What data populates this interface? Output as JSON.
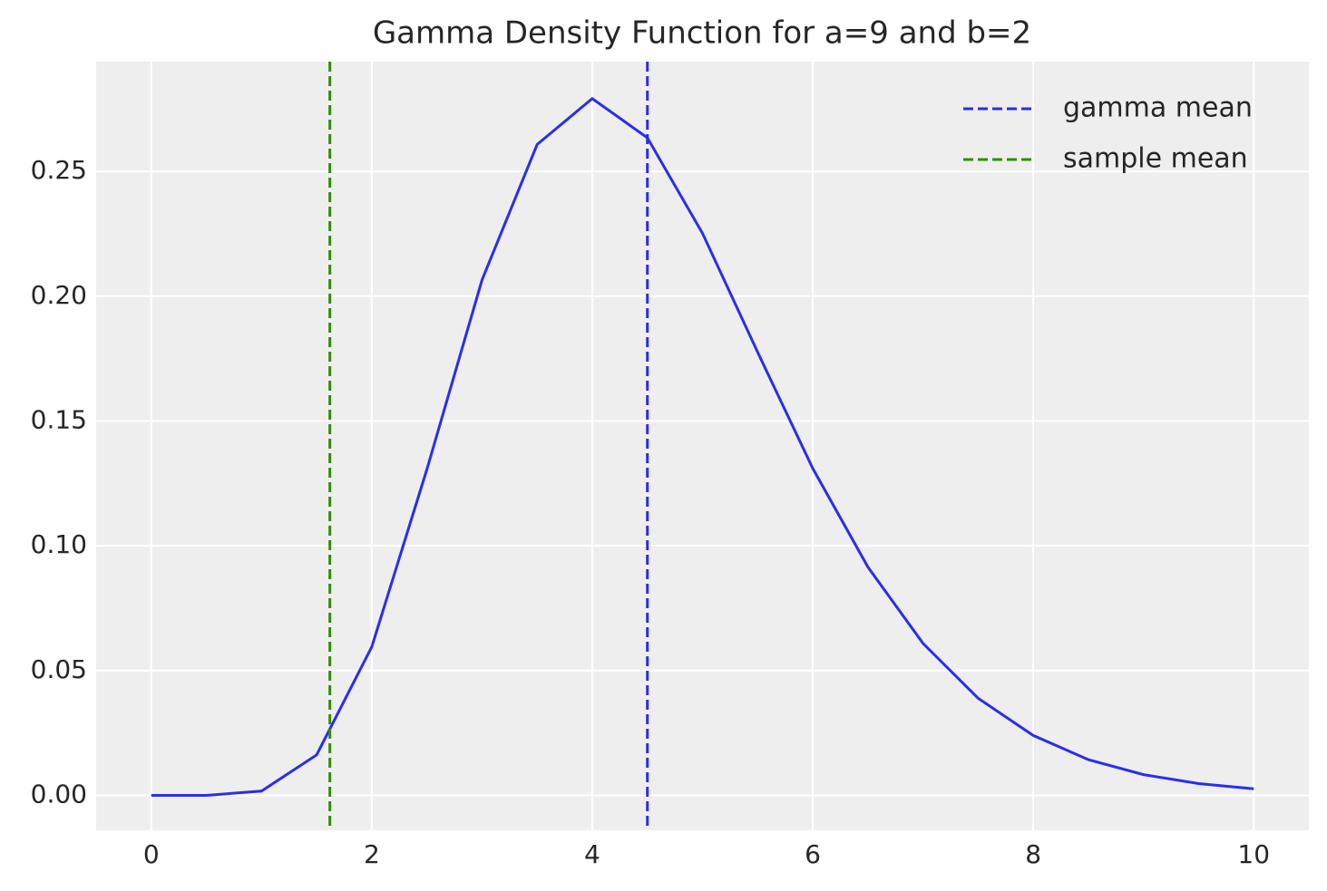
{
  "chart_data": {
    "type": "line",
    "title": "Gamma Density Function for a=9 and b=2",
    "x": [
      0,
      0.5,
      1,
      1.5,
      2,
      2.5,
      3,
      3.5,
      4,
      4.5,
      5,
      5.5,
      6,
      6.5,
      7,
      7.5,
      8,
      8.5,
      9,
      9.5,
      10
    ],
    "series": [
      {
        "color": "#2a2eec",
        "values": [
          0,
          0.0,
          0.0017,
          0.0162,
          0.0595,
          0.1306,
          0.2065,
          0.2608,
          0.2792,
          0.2635,
          0.2252,
          0.1776,
          0.131,
          0.0915,
          0.0609,
          0.0389,
          0.024,
          0.0143,
          0.0083,
          0.0047,
          0.0026
        ]
      }
    ],
    "vlines": [
      {
        "name": "gamma mean",
        "color": "#2a2eec",
        "x": 4.5
      },
      {
        "name": "sample mean",
        "color": "#328c06",
        "x": 1.62
      }
    ],
    "xlim": [
      -0.5,
      10.5
    ],
    "ylim": [
      -0.014,
      0.294
    ],
    "xticks": [
      0,
      2,
      4,
      6,
      8,
      10
    ],
    "yticks": [
      {
        "value": 0,
        "label": "0.00"
      },
      {
        "value": 0.05,
        "label": "0.05"
      },
      {
        "value": 0.1,
        "label": "0.10"
      },
      {
        "value": 0.15,
        "label": "0.15"
      },
      {
        "value": 0.2,
        "label": "0.20"
      },
      {
        "value": 0.25,
        "label": "0.25"
      }
    ],
    "grid": true,
    "legend": "upper right"
  }
}
